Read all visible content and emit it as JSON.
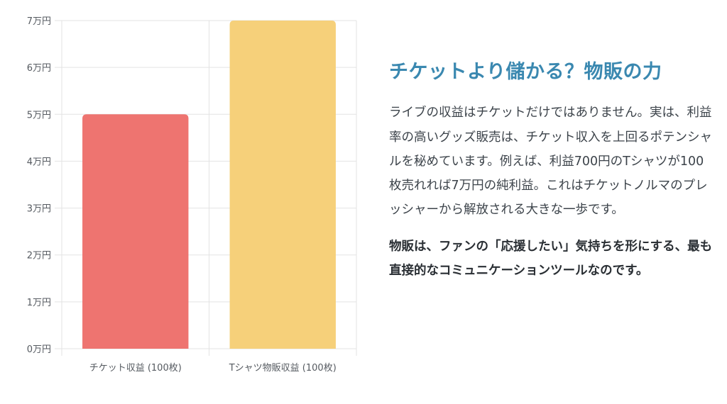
{
  "chart_data": {
    "type": "bar",
    "categories": [
      "チケット収益 (100枚)",
      "Tシャツ物販収益 (100枚)"
    ],
    "values": [
      50000,
      70000
    ],
    "bar_colors": [
      "#ee7470",
      "#f6d07a"
    ],
    "ylim": [
      0,
      70000
    ],
    "y_ticks": [
      0,
      10000,
      20000,
      30000,
      40000,
      50000,
      60000,
      70000
    ],
    "y_tick_labels": [
      "0万円",
      "1万円",
      "2万円",
      "3万円",
      "4万円",
      "5万円",
      "6万円",
      "7万円"
    ],
    "grid": true,
    "legend": "none"
  },
  "panel": {
    "heading": "チケットより儲かる？物販の力",
    "heading_color": "#3a88b0",
    "body": "ライブの収益はチケットだけではありません。実は、利益率の高いグッズ販売は、チケット収入を上回るポテンシャルを秘めています。例えば、利益700円のTシャツが100枚売れれば7万円の純利益。これはチケットノルマのプレッシャーから解放される大きな一歩です。",
    "emphasis": "物販は、ファンの「応援したい」気持ちを形にする、最も直接的なコミュニケーションツールなのです。"
  }
}
